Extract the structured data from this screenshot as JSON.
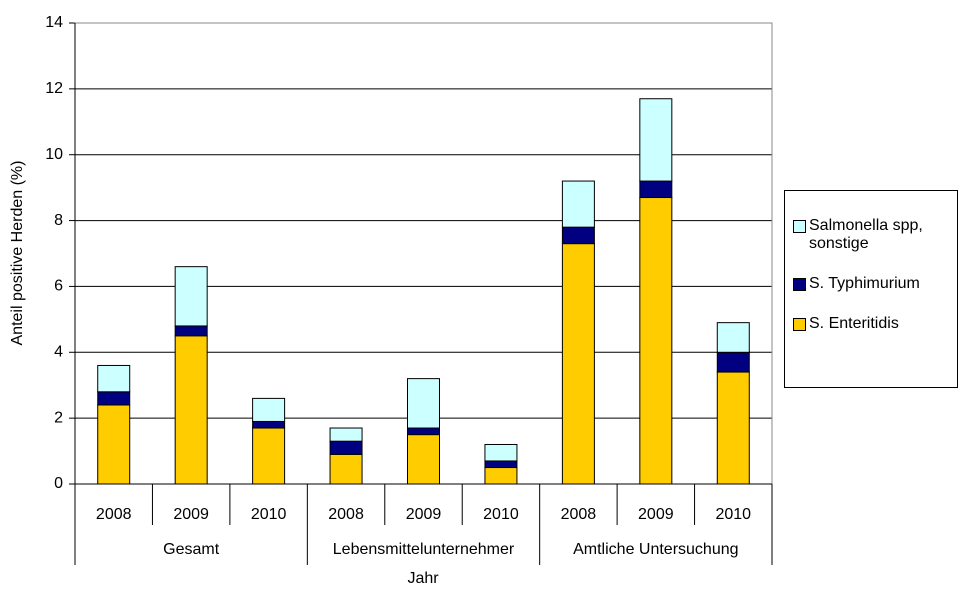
{
  "chart_data": {
    "type": "stacked_bar",
    "y_axis_label": "Anteil positive Herden (%)",
    "x_axis_label": "Jahr",
    "categories": [
      "2008",
      "2009",
      "2010",
      "2008",
      "2009",
      "2010",
      "2008",
      "2009",
      "2010"
    ],
    "groups": [
      "Gesamt",
      "Lebensmittelunternehmer",
      "Amtliche Untersuchung"
    ],
    "series": [
      {
        "name": "S. Enteritidis",
        "color": "#ffcc00",
        "values": [
          2.4,
          4.5,
          1.7,
          0.9,
          1.5,
          0.5,
          7.3,
          8.7,
          3.4
        ]
      },
      {
        "name": "S. Typhimurium",
        "color": "#000080",
        "values": [
          0.4,
          0.3,
          0.2,
          0.4,
          0.2,
          0.2,
          0.5,
          0.5,
          0.6
        ]
      },
      {
        "name": "Salmonella spp, sonstige",
        "color": "#ccffff",
        "values": [
          0.8,
          1.8,
          0.7,
          0.4,
          1.5,
          0.5,
          1.4,
          2.5,
          0.9
        ]
      }
    ],
    "ylim": [
      0,
      14
    ],
    "yticks": [
      0,
      2,
      4,
      6,
      8,
      10,
      12,
      14
    ],
    "grid": true
  }
}
